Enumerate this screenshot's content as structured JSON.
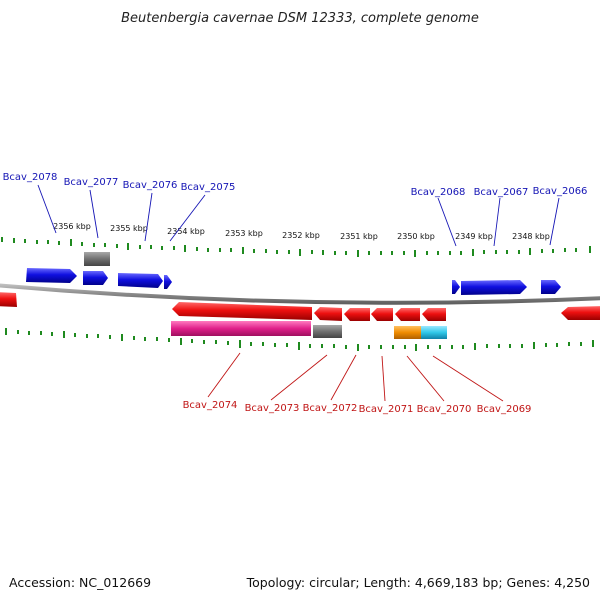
{
  "title": "Beutenbergia cavernae DSM 12333, complete genome",
  "footer": {
    "accession": "Accession: NC_012669",
    "summary": "Topology: circular; Length: 4,669,183 bp; Genes: 4,250"
  },
  "colors": {
    "forward_gene": "#1010e0",
    "reverse_gene": "#ee1010",
    "rna_gray": "#707070",
    "rna_magenta": "#e0208a",
    "rna_orange": "#f08c00",
    "rna_cyan": "#30c8e8",
    "tick": "#1f8a1f",
    "backbone": "#8a8a8a",
    "label_top": "#1515b5",
    "label_bottom": "#c01515"
  },
  "scale": {
    "tick_labels": [
      "2356 kbp",
      "2355 kbp",
      "2354 kbp",
      "2353 kbp",
      "2352 kbp",
      "2351 kbp",
      "2350 kbp",
      "2349 kbp",
      "2348 kbp"
    ]
  },
  "genes_top": [
    {
      "id": "Bcav_2078"
    },
    {
      "id": "Bcav_2077"
    },
    {
      "id": "Bcav_2076"
    },
    {
      "id": "Bcav_2075"
    },
    {
      "id": "Bcav_2068"
    },
    {
      "id": "Bcav_2067"
    },
    {
      "id": "Bcav_2066"
    }
  ],
  "genes_bottom": [
    {
      "id": "Bcav_2074"
    },
    {
      "id": "Bcav_2073"
    },
    {
      "id": "Bcav_2072"
    },
    {
      "id": "Bcav_2071"
    },
    {
      "id": "Bcav_2070"
    },
    {
      "id": "Bcav_2069"
    }
  ]
}
